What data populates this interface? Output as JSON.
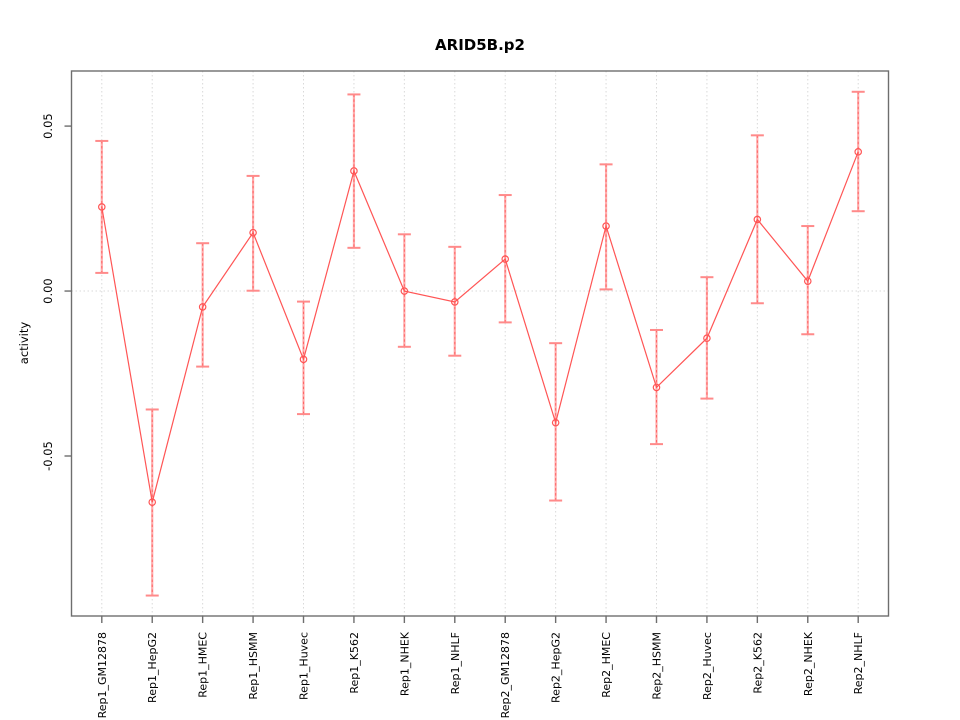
{
  "chart_data": {
    "type": "line",
    "title": "ARID5B.p2",
    "ylabel": "activity",
    "xlabel": "",
    "categories": [
      "Rep1_GM12878",
      "Rep1_HepG2",
      "Rep1_HMEC",
      "Rep1_HSMM",
      "Rep1_Huvec",
      "Rep1_K562",
      "Rep1_NHEK",
      "Rep1_NHLF",
      "Rep2_GM12878",
      "Rep2_HepG2",
      "Rep2_HMEC",
      "Rep2_HSMM",
      "Rep2_Huvec",
      "Rep2_K562",
      "Rep2_NHEK",
      "Rep2_NHLF"
    ],
    "series": [
      {
        "name": "activity",
        "values": [
          0.0255,
          -0.064,
          -0.0048,
          0.0177,
          -0.0207,
          0.0364,
          0.0,
          -0.0033,
          0.0097,
          -0.0399,
          0.0197,
          -0.0292,
          -0.0143,
          0.0217,
          0.003,
          0.0422
        ],
        "error_low": [
          0.0055,
          -0.0923,
          -0.0229,
          0.0001,
          -0.0373,
          0.0131,
          -0.0169,
          -0.0196,
          -0.0095,
          -0.0635,
          0.0005,
          -0.0464,
          -0.0326,
          -0.0037,
          -0.0131,
          0.0242
        ],
        "error_high": [
          0.0455,
          -0.0359,
          0.0145,
          0.0349,
          -0.0032,
          0.0596,
          0.0172,
          0.0134,
          0.0291,
          -0.0158,
          0.0384,
          -0.0118,
          0.0042,
          0.0472,
          0.0197,
          0.0604
        ]
      }
    ],
    "yticks": [
      {
        "value": 0.05,
        "label": "0.05"
      },
      {
        "value": 0.0,
        "label": "0.00"
      },
      {
        "value": -0.05,
        "label": "-0.05"
      }
    ],
    "ylim": [
      -0.0985,
      0.0667
    ],
    "grid": {
      "vertical_dotted_per_category": true,
      "zero_line_dotted": true
    },
    "legend_position": "none",
    "colors": {
      "line": "#ff5555",
      "marker": "#ff5555",
      "error_bar_fill": "#ffabab",
      "error_bar_dash": "#ff6666",
      "error_bar_cap": "#ff8a8a",
      "grid": "#d9d9d9",
      "frame": "#6e6e6e",
      "text": "#000000",
      "background": "#ffffff"
    }
  }
}
